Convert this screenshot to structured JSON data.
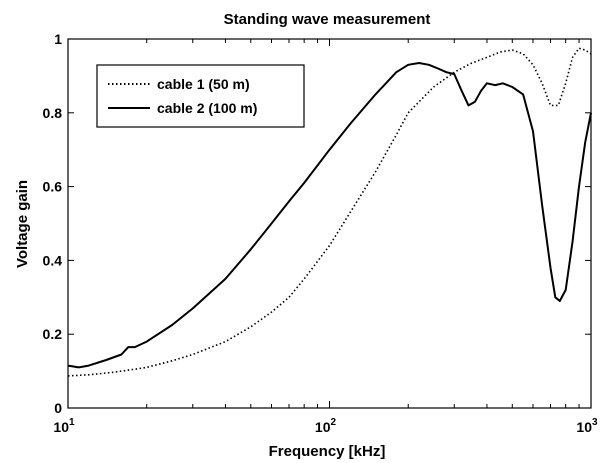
{
  "chart_data": {
    "type": "line",
    "title": "Standing wave measurement",
    "xlabel": "Frequency [kHz]",
    "ylabel": "Voltage gain",
    "xscale": "log",
    "xlim": [
      10,
      1000
    ],
    "ylim": [
      0,
      1
    ],
    "xticks": [
      {
        "value": 10,
        "base": "10",
        "exp": "1"
      },
      {
        "value": 100,
        "base": "10",
        "exp": "2"
      },
      {
        "value": 1000,
        "base": "10",
        "exp": "3"
      }
    ],
    "yticks": [
      {
        "value": 0,
        "label": "0"
      },
      {
        "value": 0.2,
        "label": "0.2"
      },
      {
        "value": 0.4,
        "label": "0.4"
      },
      {
        "value": 0.6,
        "label": "0.6"
      },
      {
        "value": 0.8,
        "label": "0.8"
      },
      {
        "value": 1,
        "label": "1"
      }
    ],
    "grid": false,
    "legend_position": "top-left",
    "series": [
      {
        "name": "cable 1 (50 m)",
        "style": "dotted",
        "color": "#000000",
        "x": [
          10,
          12,
          15,
          20,
          25,
          30,
          40,
          50,
          60,
          70,
          80,
          100,
          120,
          150,
          180,
          200,
          250,
          300,
          350,
          400,
          450,
          500,
          550,
          600,
          650,
          700,
          750,
          800,
          850,
          900,
          950,
          1000
        ],
        "y": [
          0.087,
          0.09,
          0.097,
          0.11,
          0.128,
          0.145,
          0.18,
          0.22,
          0.26,
          0.3,
          0.35,
          0.44,
          0.53,
          0.64,
          0.74,
          0.8,
          0.87,
          0.91,
          0.935,
          0.95,
          0.965,
          0.97,
          0.96,
          0.93,
          0.88,
          0.82,
          0.82,
          0.88,
          0.95,
          0.975,
          0.97,
          0.96
        ]
      },
      {
        "name": "cable 2 (100 m)",
        "style": "solid",
        "color": "#000000",
        "x": [
          10,
          11,
          12,
          14,
          16,
          17,
          18,
          20,
          25,
          30,
          40,
          50,
          60,
          70,
          80,
          100,
          120,
          150,
          180,
          200,
          220,
          240,
          260,
          280,
          300,
          320,
          340,
          360,
          380,
          400,
          430,
          460,
          500,
          550,
          600,
          650,
          700,
          730,
          760,
          800,
          850,
          900,
          950,
          1000
        ],
        "y": [
          0.115,
          0.11,
          0.115,
          0.13,
          0.145,
          0.165,
          0.165,
          0.18,
          0.225,
          0.27,
          0.35,
          0.43,
          0.5,
          0.56,
          0.61,
          0.7,
          0.77,
          0.85,
          0.91,
          0.93,
          0.935,
          0.93,
          0.92,
          0.91,
          0.905,
          0.86,
          0.82,
          0.83,
          0.86,
          0.88,
          0.875,
          0.88,
          0.87,
          0.85,
          0.75,
          0.55,
          0.38,
          0.3,
          0.29,
          0.32,
          0.45,
          0.6,
          0.72,
          0.8
        ]
      }
    ]
  }
}
